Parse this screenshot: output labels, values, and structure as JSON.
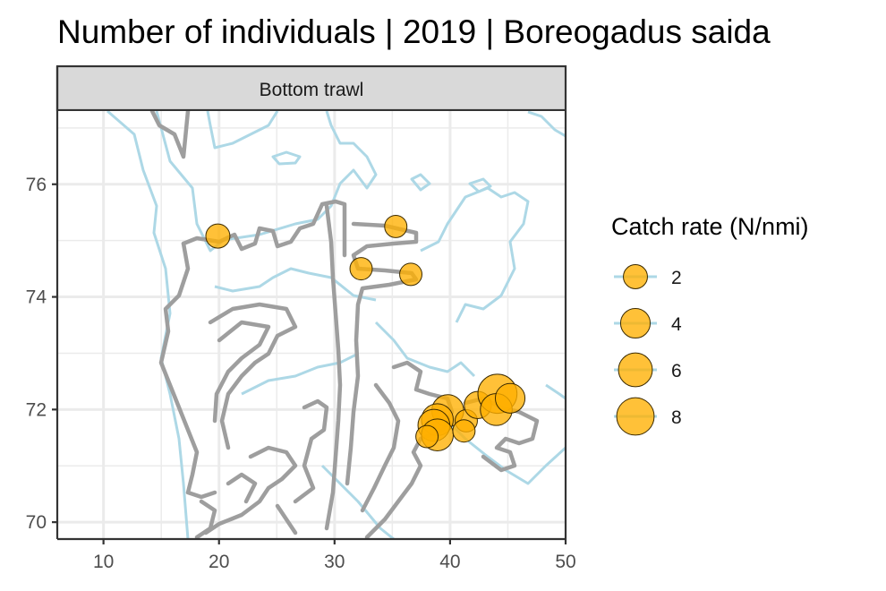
{
  "chart_data": {
    "type": "scatter",
    "title": "Number of individuals | 2019 | Boreogadus saida",
    "facet_label": "Bottom trawl",
    "xlabel": "",
    "ylabel": "",
    "xlim": [
      6,
      50
    ],
    "ylim": [
      69.7,
      77.3
    ],
    "x_ticks": [
      10,
      20,
      30,
      40,
      50
    ],
    "y_ticks": [
      70,
      72,
      74,
      76
    ],
    "grid": true,
    "legend_position": "right",
    "legend": {
      "title": "Catch rate (N/nmi)",
      "entries": [
        {
          "label": "2",
          "value": 2
        },
        {
          "label": "4",
          "value": 4
        },
        {
          "label": "6",
          "value": 6
        },
        {
          "label": "8",
          "value": 8
        }
      ]
    },
    "colors": {
      "point_fill": "#FFB000",
      "point_stroke": "#3b2a00",
      "survey_tracks": "#9e9e9e",
      "depth_contours": "#add8e6",
      "strip_fill": "#d9d9d9",
      "grid": "#ebebeb"
    },
    "points": [
      {
        "lon": 19.9,
        "lat": 75.08,
        "catch": 2
      },
      {
        "lon": 35.3,
        "lat": 75.25,
        "catch": 1.5
      },
      {
        "lon": 32.3,
        "lat": 74.5,
        "catch": 1.5
      },
      {
        "lon": 36.6,
        "lat": 74.4,
        "catch": 1.5
      },
      {
        "lon": 39.8,
        "lat": 71.98,
        "catch": 5
      },
      {
        "lon": 38.9,
        "lat": 71.82,
        "catch": 5
      },
      {
        "lon": 38.6,
        "lat": 71.72,
        "catch": 5
      },
      {
        "lon": 38.9,
        "lat": 71.55,
        "catch": 5
      },
      {
        "lon": 41.4,
        "lat": 71.8,
        "catch": 1.5
      },
      {
        "lon": 41.2,
        "lat": 71.62,
        "catch": 1.5
      },
      {
        "lon": 38.0,
        "lat": 71.52,
        "catch": 1.5
      },
      {
        "lon": 42.4,
        "lat": 72.08,
        "catch": 3
      },
      {
        "lon": 44.1,
        "lat": 72.28,
        "catch": 9
      },
      {
        "lon": 44.0,
        "lat": 72.0,
        "catch": 5
      },
      {
        "lon": 45.2,
        "lat": 72.2,
        "catch": 4
      }
    ]
  }
}
